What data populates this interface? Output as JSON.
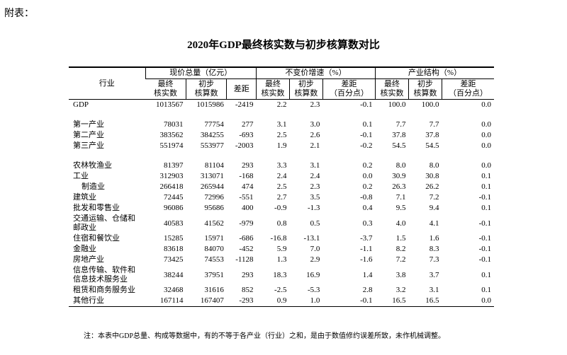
{
  "header": {
    "label": "附表：",
    "title": "2020年GDP最终核实数与初步核算数对比"
  },
  "table": {
    "corner": "行业",
    "column_groups": [
      {
        "name": "现价总量（亿元）",
        "columns": [
          "最终\n核实数",
          "初步\n核算数",
          "差距"
        ]
      },
      {
        "name": "不变价增速（%）",
        "columns": [
          "最终\n核实数",
          "初步\n核算数",
          "差距\n（百分点）"
        ]
      },
      {
        "name": "产业结构（%）",
        "columns": [
          "最终\n核实数",
          "初步\n核算数",
          "差距\n（百分点）"
        ]
      }
    ],
    "groups": [
      {
        "rows": [
          {
            "label": "GDP",
            "cells": [
              "1013567",
              "1015986",
              "-2419",
              "2.2",
              "2.3",
              "-0.1",
              "100.0",
              "100.0",
              "0.0"
            ]
          }
        ]
      },
      {
        "rows": [
          {
            "label": "第一产业",
            "cells": [
              "78031",
              "77754",
              "277",
              "3.1",
              "3.0",
              "0.1",
              "7.7",
              "7.7",
              "0.0"
            ]
          },
          {
            "label": "第二产业",
            "cells": [
              "383562",
              "384255",
              "-693",
              "2.5",
              "2.6",
              "-0.1",
              "37.8",
              "37.8",
              "0.0"
            ]
          },
          {
            "label": "第三产业",
            "cells": [
              "551974",
              "553977",
              "-2003",
              "1.9",
              "2.1",
              "-0.2",
              "54.5",
              "54.5",
              "0.0"
            ]
          }
        ]
      },
      {
        "rows": [
          {
            "label": "农林牧渔业",
            "cells": [
              "81397",
              "81104",
              "293",
              "3.3",
              "3.1",
              "0.2",
              "8.0",
              "8.0",
              "0.0"
            ]
          },
          {
            "label": "工业",
            "cells": [
              "312903",
              "313071",
              "-168",
              "2.4",
              "2.4",
              "0.0",
              "30.9",
              "30.8",
              "0.1"
            ]
          },
          {
            "label": "制造业",
            "cells": [
              "266418",
              "265944",
              "474",
              "2.5",
              "2.3",
              "0.2",
              "26.3",
              "26.2",
              "0.1"
            ]
          },
          {
            "label": "建筑业",
            "cells": [
              "72445",
              "72996",
              "-551",
              "2.7",
              "3.5",
              "-0.8",
              "7.1",
              "7.2",
              "-0.1"
            ]
          },
          {
            "label": "批发和零售业",
            "cells": [
              "96086",
              "95686",
              "400",
              "-0.9",
              "-1.3",
              "0.4",
              "9.5",
              "9.4",
              "0.1"
            ]
          },
          {
            "label": "交通运输、仓储和邮政业",
            "cells": [
              "40583",
              "41562",
              "-979",
              "0.8",
              "0.5",
              "0.3",
              "4.0",
              "4.1",
              "-0.1"
            ]
          },
          {
            "label": "住宿和餐饮业",
            "cells": [
              "15285",
              "15971",
              "-686",
              "-16.8",
              "-13.1",
              "-3.7",
              "1.5",
              "1.6",
              "-0.1"
            ]
          },
          {
            "label": "金融业",
            "cells": [
              "83618",
              "84070",
              "-452",
              "5.9",
              "7.0",
              "-1.1",
              "8.2",
              "8.3",
              "-0.1"
            ]
          },
          {
            "label": "房地产业",
            "cells": [
              "73425",
              "74553",
              "-1128",
              "1.3",
              "2.9",
              "-1.6",
              "7.2",
              "7.3",
              "-0.1"
            ]
          },
          {
            "label": "信息传输、软件和信息技术服务业",
            "cells": [
              "38244",
              "37951",
              "293",
              "18.3",
              "16.9",
              "1.4",
              "3.8",
              "3.7",
              "0.1"
            ]
          },
          {
            "label": "租赁和商务服务业",
            "cells": [
              "32468",
              "31616",
              "852",
              "-2.5",
              "-5.3",
              "2.8",
              "3.2",
              "3.1",
              "0.1"
            ]
          },
          {
            "label": "其他行业",
            "cells": [
              "167114",
              "167407",
              "-293",
              "0.9",
              "1.0",
              "-0.1",
              "16.5",
              "16.5",
              "0.0"
            ]
          }
        ]
      }
    ]
  },
  "note": "注：本表中GDP总量、构成等数据中，有的不等于各产业（行业）之和，是由于数值修约误差所致，未作机械调整。"
}
